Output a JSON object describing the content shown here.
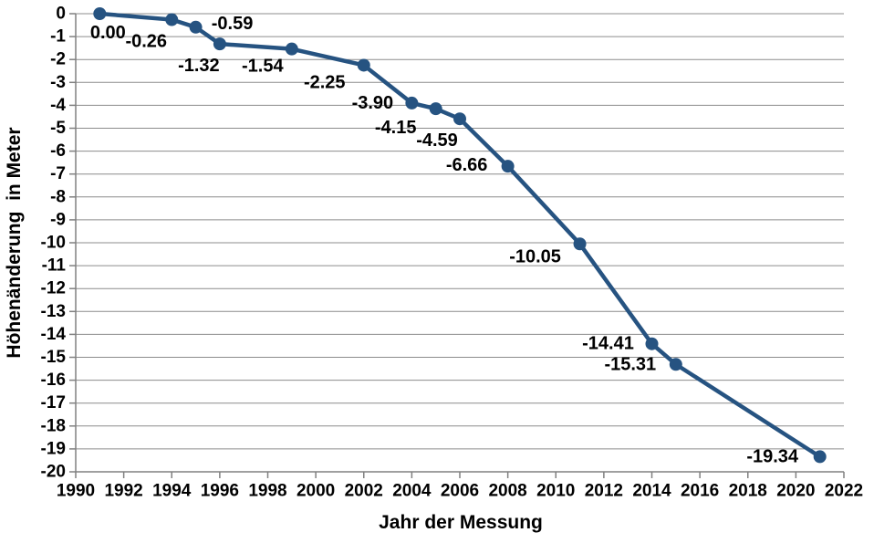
{
  "chart_data": {
    "type": "line",
    "title": "",
    "xlabel": "Jahr der Messung",
    "ylabel": "Höhenänderung  in Meter",
    "xlim": [
      1990,
      2022
    ],
    "ylim": [
      -20,
      0
    ],
    "x_tick_step": 2,
    "y_tick_step": 1,
    "x_tick_labels": [
      "1990",
      "1992",
      "1994",
      "1996",
      "1998",
      "2000",
      "2002",
      "2004",
      "2006",
      "2008",
      "2010",
      "2012",
      "2014",
      "2016",
      "2018",
      "2020",
      "2022"
    ],
    "y_tick_labels": [
      "0",
      "-1",
      "-2",
      "-3",
      "-4",
      "-5",
      "-6",
      "-7",
      "-8",
      "-9",
      "-10",
      "-11",
      "-12",
      "-13",
      "-14",
      "-15",
      "-16",
      "-17",
      "-18",
      "-19",
      "-20"
    ],
    "grid": "horizontal",
    "legend": "none",
    "colors": {
      "line": "#265381",
      "marker": "#265381",
      "grid": "#8C8C8C",
      "axis": "#808080",
      "text": "#000000",
      "background": "#FFFFFF"
    },
    "series": [
      {
        "name": "Höhenänderung",
        "x": [
          1991,
          1994,
          1995,
          1996,
          1999,
          2002,
          2004,
          2005,
          2006,
          2008,
          2011,
          2014,
          2015,
          2021
        ],
        "y": [
          0.0,
          -0.26,
          -0.59,
          -1.32,
          -1.54,
          -2.25,
          -3.9,
          -4.15,
          -4.59,
          -6.66,
          -10.05,
          -14.41,
          -15.31,
          -19.34
        ],
        "point_labels": [
          "0.00",
          "-0.26",
          "-0.59",
          "-1.32",
          "-1.54",
          "-2.25",
          "-3.90",
          "-4.15",
          "-4.59",
          "-6.66",
          "-10.05",
          "-14.41",
          "-15.31",
          "-19.34"
        ],
        "label_offsets": [
          [
            9,
            21
          ],
          [
            -28,
            24
          ],
          [
            40,
            -4
          ],
          [
            -23,
            24
          ],
          [
            -32,
            19
          ],
          [
            -43,
            19
          ],
          [
            -43,
            0
          ],
          [
            -44,
            21
          ],
          [
            -25,
            24
          ],
          [
            -45,
            -1
          ],
          [
            -49,
            14
          ],
          [
            -48,
            0
          ],
          [
            -50,
            0
          ],
          [
            -52,
            0
          ]
        ]
      }
    ]
  }
}
